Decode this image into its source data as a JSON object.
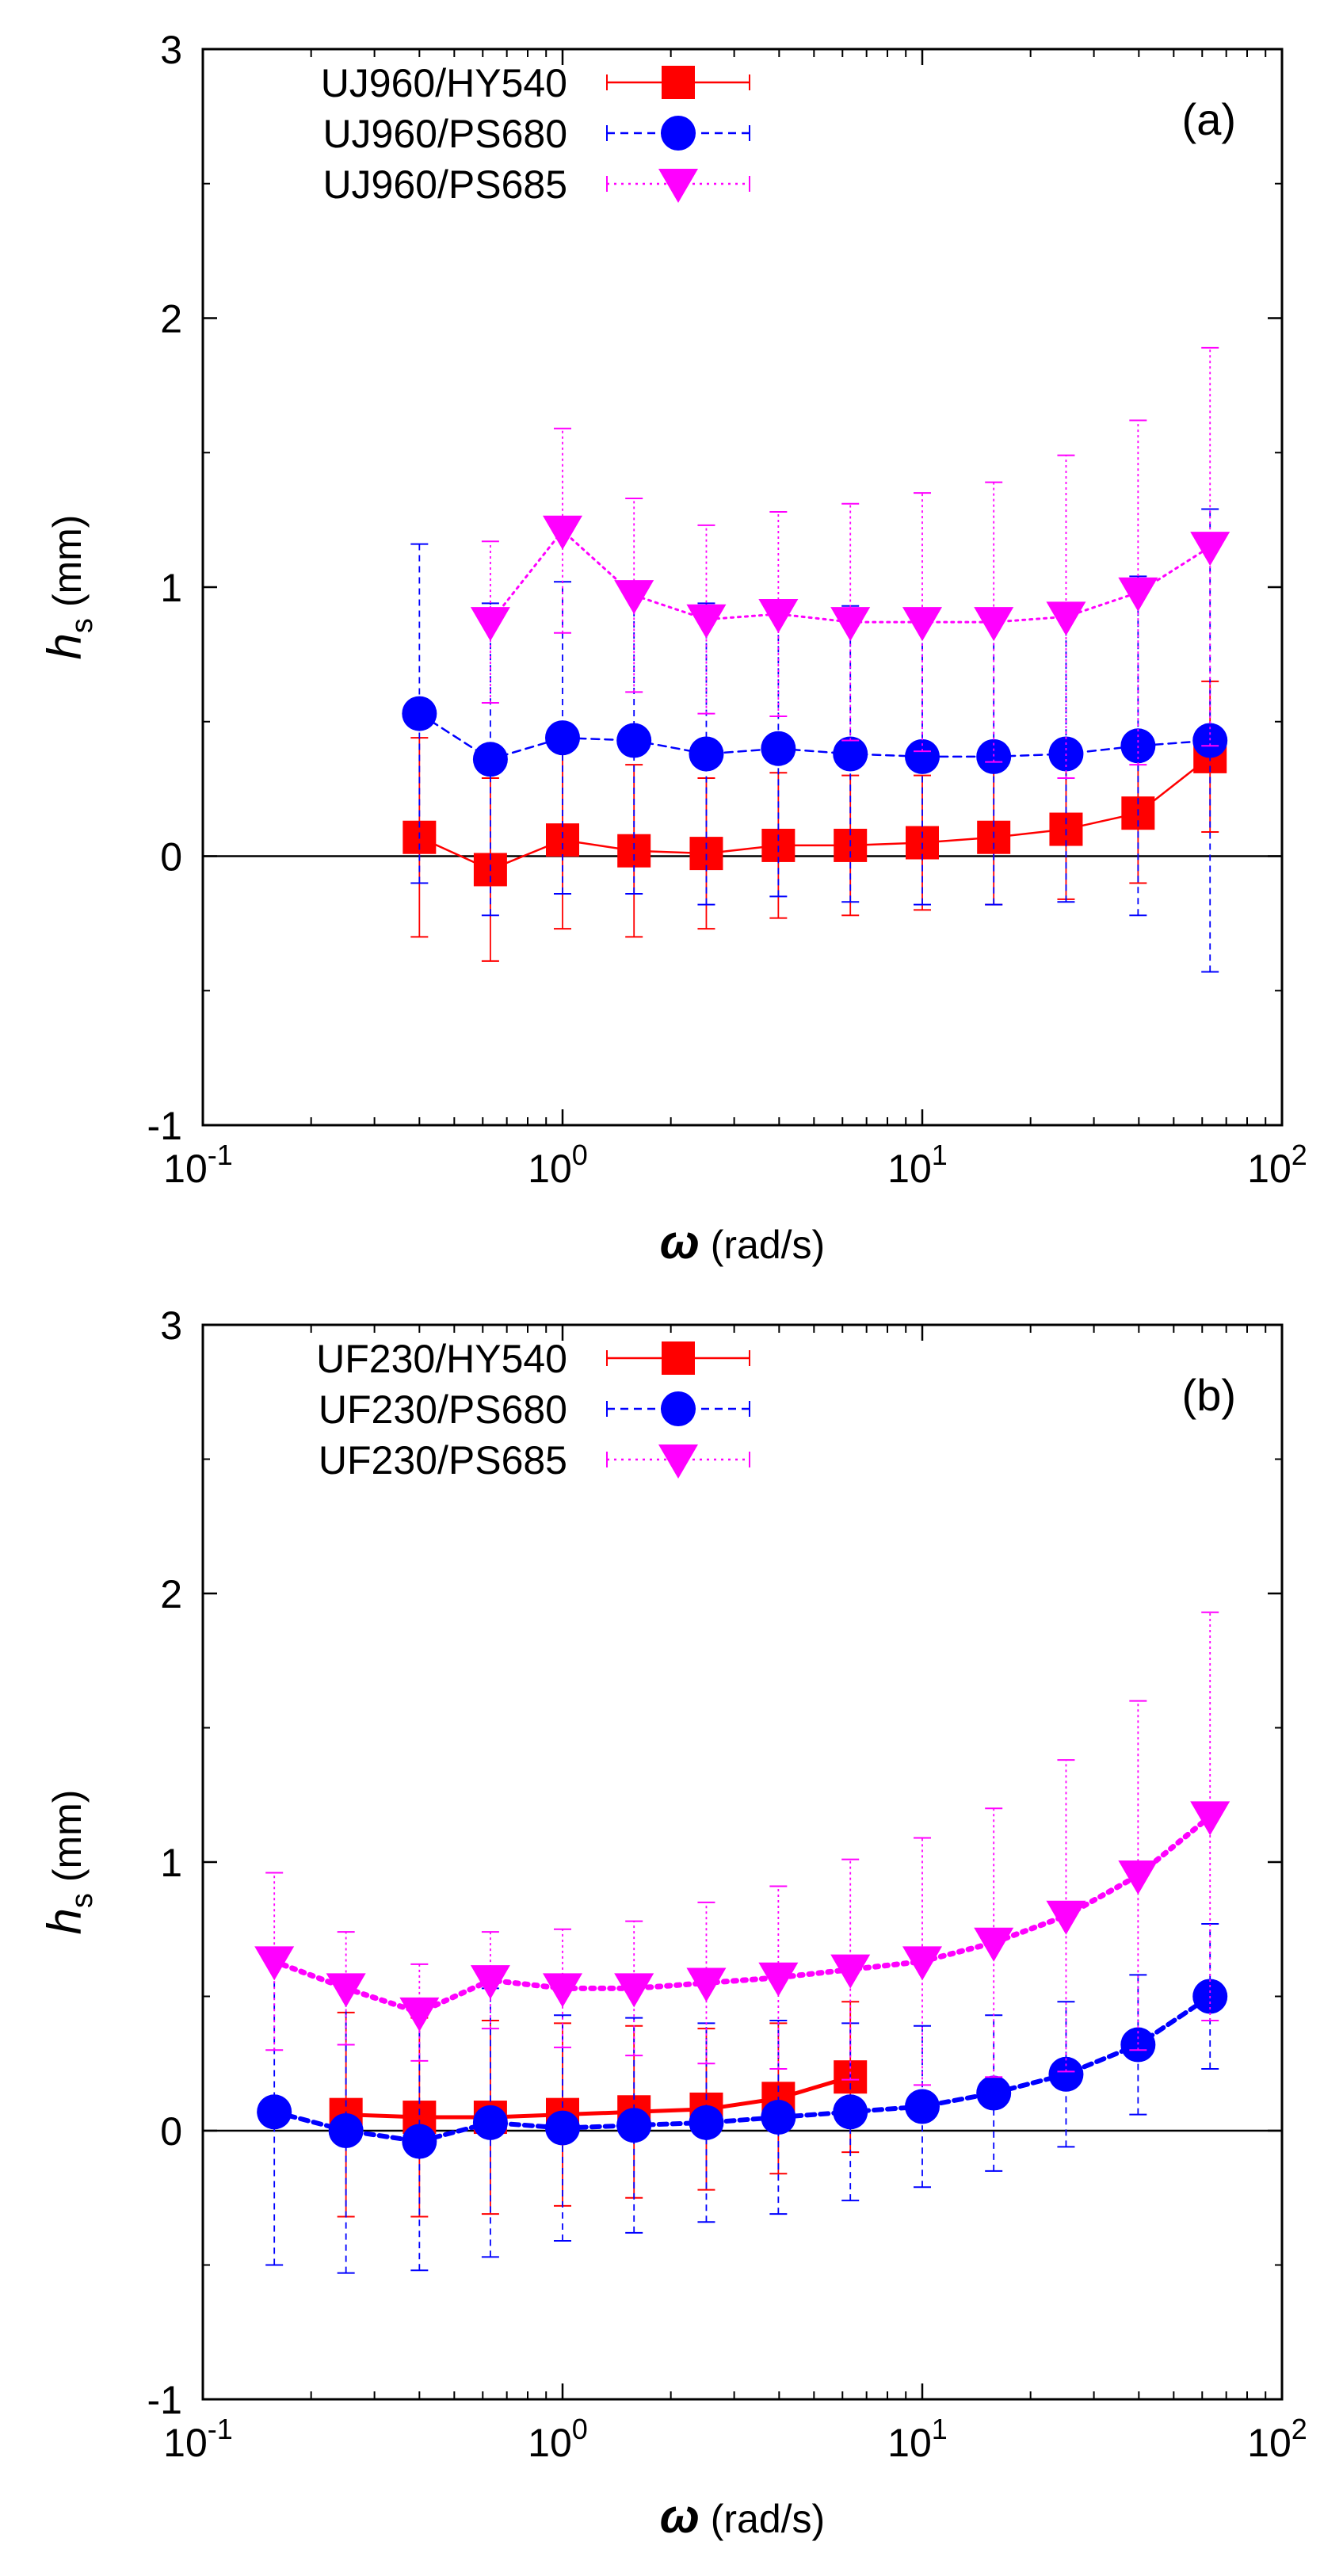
{
  "chart_data": [
    {
      "type": "line",
      "panel_label": "(a)",
      "xscale": "log",
      "xlim": [
        0.1,
        100
      ],
      "ylim": [
        -1,
        3
      ],
      "x_ticks": [
        {
          "base": "10",
          "exp": "-1"
        },
        {
          "base": "10",
          "exp": "0"
        },
        {
          "base": "10",
          "exp": "1"
        },
        {
          "base": "10",
          "exp": "2"
        }
      ],
      "y_ticks": [
        "-1",
        "0",
        "1",
        "2",
        "3"
      ],
      "xlabel": {
        "symbol": "ω",
        "units": "(rad/s)"
      },
      "ylabel": {
        "symbol": "h",
        "subscript": "s",
        "units": "(mm)"
      },
      "zero_line": true,
      "legend_position": "top-left",
      "series": [
        {
          "name": "UJ960/HY540",
          "color": "#ff0000",
          "marker": "square",
          "line": "solid",
          "x": [
            0.4,
            0.63,
            1.0,
            1.58,
            2.51,
            3.98,
            6.31,
            10.0,
            15.8,
            25.1,
            39.8,
            63.1
          ],
          "y": [
            0.07,
            -0.05,
            0.06,
            0.02,
            0.01,
            0.04,
            0.04,
            0.05,
            0.07,
            0.1,
            0.16,
            0.37
          ],
          "err": [
            0.37,
            0.34,
            0.33,
            0.32,
            0.28,
            0.27,
            0.26,
            0.25,
            0.25,
            0.26,
            0.26,
            0.28
          ]
        },
        {
          "name": "UJ960/PS680",
          "color": "#0000ff",
          "marker": "circle",
          "line": "dashed",
          "x": [
            0.4,
            0.63,
            1.0,
            1.58,
            2.51,
            3.98,
            6.31,
            10.0,
            15.8,
            25.1,
            39.8,
            63.1
          ],
          "y": [
            0.53,
            0.36,
            0.44,
            0.43,
            0.38,
            0.4,
            0.38,
            0.37,
            0.37,
            0.38,
            0.41,
            0.43
          ],
          "err": [
            0.63,
            0.58,
            0.58,
            0.57,
            0.56,
            0.55,
            0.55,
            0.55,
            0.55,
            0.55,
            0.63,
            0.86
          ]
        },
        {
          "name": "UJ960/PS685",
          "color": "#ff00ff",
          "marker": "triangle-down",
          "line": "dotted",
          "x": [
            0.63,
            1.0,
            1.58,
            2.51,
            3.98,
            6.31,
            10.0,
            15.8,
            25.1,
            39.8,
            63.1
          ],
          "y": [
            0.87,
            1.21,
            0.97,
            0.88,
            0.9,
            0.87,
            0.87,
            0.87,
            0.89,
            0.98,
            1.15
          ],
          "err": [
            0.3,
            0.38,
            0.36,
            0.35,
            0.38,
            0.44,
            0.48,
            0.52,
            0.6,
            0.64,
            0.74
          ]
        }
      ]
    },
    {
      "type": "line",
      "panel_label": "(b)",
      "xscale": "log",
      "xlim": [
        0.1,
        100
      ],
      "ylim": [
        -1,
        3
      ],
      "x_ticks": [
        {
          "base": "10",
          "exp": "-1"
        },
        {
          "base": "10",
          "exp": "0"
        },
        {
          "base": "10",
          "exp": "1"
        },
        {
          "base": "10",
          "exp": "2"
        }
      ],
      "y_ticks": [
        "-1",
        "0",
        "1",
        "2",
        "3"
      ],
      "xlabel": {
        "symbol": "ω",
        "units": "(rad/s)"
      },
      "ylabel": {
        "symbol": "h",
        "subscript": "s",
        "units": "(mm)"
      },
      "zero_line": true,
      "legend_position": "top-left",
      "series": [
        {
          "name": "UF230/HY540",
          "color": "#ff0000",
          "marker": "square",
          "line": "solid",
          "x": [
            0.25,
            0.4,
            0.63,
            1.0,
            1.58,
            2.51,
            3.98,
            6.31
          ],
          "y": [
            0.06,
            0.05,
            0.05,
            0.06,
            0.07,
            0.08,
            0.12,
            0.2
          ],
          "err": [
            0.38,
            0.37,
            0.36,
            0.34,
            0.32,
            0.3,
            0.28,
            0.28
          ]
        },
        {
          "name": "UF230/PS680",
          "color": "#0000ff",
          "marker": "circle",
          "line": "dashed",
          "x": [
            0.158,
            0.25,
            0.4,
            0.63,
            1.0,
            1.58,
            2.51,
            3.98,
            6.31,
            10.0,
            15.8,
            25.1,
            39.8,
            63.1
          ],
          "y": [
            0.07,
            0.0,
            -0.04,
            0.03,
            0.01,
            0.02,
            0.03,
            0.05,
            0.07,
            0.09,
            0.14,
            0.21,
            0.32,
            0.5
          ],
          "err": [
            0.57,
            0.53,
            0.48,
            0.5,
            0.42,
            0.4,
            0.37,
            0.36,
            0.33,
            0.3,
            0.29,
            0.27,
            0.26,
            0.27
          ]
        },
        {
          "name": "UF230/PS685",
          "color": "#ff00ff",
          "marker": "triangle-down",
          "line": "dotted",
          "x": [
            0.158,
            0.25,
            0.4,
            0.63,
            1.0,
            1.58,
            2.51,
            3.98,
            6.31,
            10.0,
            15.8,
            25.1,
            39.8,
            63.1
          ],
          "y": [
            0.63,
            0.53,
            0.44,
            0.56,
            0.53,
            0.53,
            0.55,
            0.57,
            0.6,
            0.63,
            0.7,
            0.8,
            0.95,
            1.17
          ],
          "err": [
            0.33,
            0.21,
            0.18,
            0.18,
            0.22,
            0.25,
            0.3,
            0.34,
            0.41,
            0.46,
            0.5,
            0.58,
            0.65,
            0.76
          ]
        }
      ]
    }
  ]
}
